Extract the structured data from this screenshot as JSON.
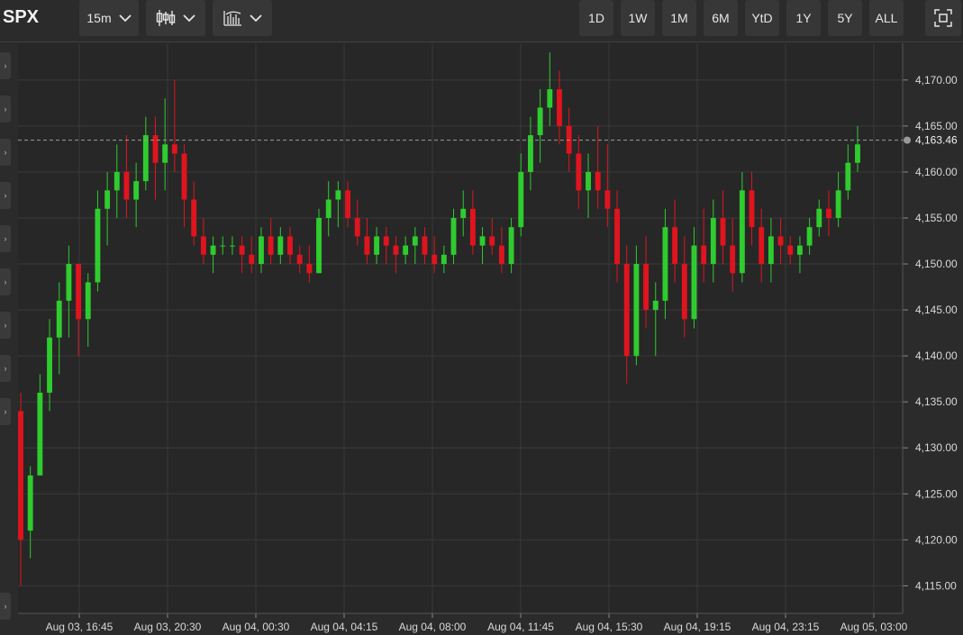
{
  "toolbar": {
    "symbol": "SPX",
    "interval": "15m",
    "chart_type_icon": "candlestick-icon",
    "indicators_icon": "indicators-icon",
    "ranges": [
      "1D",
      "1W",
      "1M",
      "6M",
      "YtD",
      "1Y",
      "5Y",
      "ALL"
    ],
    "fullscreen_icon": "fullscreen-icon"
  },
  "colors": {
    "up": "#2ecc2e",
    "down": "#e0141e",
    "background": "#2b2b2b",
    "grid": "#3a3a3a",
    "text": "#d8d8d8"
  },
  "chart_data": {
    "type": "candlestick",
    "y_axis": {
      "range": [
        4112,
        4174
      ],
      "ticks": [
        4115,
        4120,
        4125,
        4130,
        4135,
        4140,
        4145,
        4150,
        4155,
        4160,
        4165,
        4170
      ],
      "tick_labels": [
        "4,115.00",
        "4,120.00",
        "4,125.00",
        "4,130.00",
        "4,135.00",
        "4,140.00",
        "4,145.00",
        "4,150.00",
        "4,155.00",
        "4,160.00",
        "4,165.00",
        "4,170.00"
      ]
    },
    "x_axis": {
      "tick_labels": [
        "Aug 03, 16:45",
        "Aug 03, 20:30",
        "Aug 04, 00:30",
        "Aug 04, 04:15",
        "Aug 04, 08:00",
        "Aug 04, 11:45",
        "Aug 04, 15:30",
        "Aug 04, 19:15",
        "Aug 04, 23:15",
        "Aug 05, 03:00"
      ]
    },
    "last_price": 4163.46,
    "last_price_label": "4,163.46",
    "grid": true,
    "candles": [
      [
        4134,
        4136,
        4115,
        4120
      ],
      [
        4121,
        4128,
        4118,
        4127
      ],
      [
        4127,
        4138,
        4127,
        4136
      ],
      [
        4136,
        4144,
        4134,
        4142
      ],
      [
        4142,
        4148,
        4138,
        4146
      ],
      [
        4146,
        4152,
        4142,
        4150
      ],
      [
        4150,
        4150,
        4140,
        4144
      ],
      [
        4144,
        4149,
        4141,
        4148
      ],
      [
        4148,
        4158,
        4147,
        4156
      ],
      [
        4156,
        4160,
        4152,
        4158
      ],
      [
        4158,
        4163,
        4155,
        4160
      ],
      [
        4160,
        4164,
        4155,
        4157
      ],
      [
        4157,
        4161,
        4154,
        4159
      ],
      [
        4159,
        4166,
        4158,
        4164
      ],
      [
        4164,
        4166,
        4157,
        4161
      ],
      [
        4161,
        4168,
        4158,
        4163
      ],
      [
        4163,
        4170,
        4160,
        4162
      ],
      [
        4162,
        4163,
        4154,
        4157
      ],
      [
        4157,
        4159,
        4152,
        4153
      ],
      [
        4153,
        4155,
        4150,
        4151
      ],
      [
        4151,
        4153,
        4149,
        4152
      ],
      [
        4152,
        4153,
        4151,
        4152
      ],
      [
        4152,
        4153,
        4151,
        4152
      ],
      [
        4152,
        4153,
        4149,
        4151
      ],
      [
        4151,
        4153,
        4149,
        4150
      ],
      [
        4150,
        4154,
        4149,
        4153
      ],
      [
        4153,
        4155,
        4150,
        4151
      ],
      [
        4151,
        4154,
        4150,
        4153
      ],
      [
        4153,
        4154,
        4150,
        4151
      ],
      [
        4151,
        4152,
        4149,
        4150
      ],
      [
        4150,
        4152,
        4148,
        4149
      ],
      [
        4149,
        4156,
        4149,
        4155
      ],
      [
        4155,
        4159,
        4153,
        4157
      ],
      [
        4157,
        4159,
        4154,
        4158
      ],
      [
        4158,
        4159,
        4154,
        4155
      ],
      [
        4155,
        4157,
        4152,
        4153
      ],
      [
        4153,
        4155,
        4150,
        4151
      ],
      [
        4151,
        4154,
        4150,
        4153
      ],
      [
        4153,
        4154,
        4150,
        4152
      ],
      [
        4152,
        4153,
        4149,
        4151
      ],
      [
        4151,
        4153,
        4150,
        4152
      ],
      [
        4152,
        4154,
        4150,
        4153
      ],
      [
        4153,
        4154,
        4150,
        4151
      ],
      [
        4151,
        4153,
        4149,
        4150
      ],
      [
        4150,
        4152,
        4149,
        4151
      ],
      [
        4151,
        4156,
        4150,
        4155
      ],
      [
        4155,
        4158,
        4153,
        4156
      ],
      [
        4156,
        4158,
        4151,
        4152
      ],
      [
        4152,
        4154,
        4150,
        4153
      ],
      [
        4153,
        4155,
        4151,
        4152
      ],
      [
        4152,
        4154,
        4149,
        4150
      ],
      [
        4150,
        4155,
        4149,
        4154
      ],
      [
        4154,
        4162,
        4153,
        4160
      ],
      [
        4160,
        4166,
        4158,
        4164
      ],
      [
        4164,
        4169,
        4161,
        4167
      ],
      [
        4167,
        4173,
        4165,
        4169
      ],
      [
        4169,
        4171,
        4163,
        4165
      ],
      [
        4165,
        4167,
        4160,
        4162
      ],
      [
        4162,
        4164,
        4156,
        4158
      ],
      [
        4158,
        4162,
        4155,
        4160
      ],
      [
        4160,
        4165,
        4156,
        4158
      ],
      [
        4158,
        4163,
        4154,
        4156
      ],
      [
        4156,
        4158,
        4148,
        4150
      ],
      [
        4150,
        4152,
        4137,
        4140
      ],
      [
        4140,
        4152,
        4139,
        4150
      ],
      [
        4150,
        4153,
        4143,
        4145
      ],
      [
        4145,
        4148,
        4140,
        4146
      ],
      [
        4146,
        4156,
        4144,
        4154
      ],
      [
        4154,
        4157,
        4148,
        4150
      ],
      [
        4150,
        4153,
        4142,
        4144
      ],
      [
        4144,
        4154,
        4143,
        4152
      ],
      [
        4152,
        4156,
        4148,
        4150
      ],
      [
        4150,
        4157,
        4148,
        4155
      ],
      [
        4155,
        4158,
        4150,
        4152
      ],
      [
        4152,
        4155,
        4147,
        4149
      ],
      [
        4149,
        4160,
        4148,
        4158
      ],
      [
        4158,
        4160,
        4152,
        4154
      ],
      [
        4154,
        4156,
        4148,
        4150
      ],
      [
        4150,
        4155,
        4148,
        4153
      ],
      [
        4153,
        4155,
        4150,
        4152
      ],
      [
        4152,
        4153,
        4150,
        4151
      ],
      [
        4151,
        4153,
        4149,
        4152
      ],
      [
        4152,
        4155,
        4151,
        4154
      ],
      [
        4154,
        4157,
        4153,
        4156
      ],
      [
        4156,
        4158,
        4153,
        4155
      ],
      [
        4155,
        4160,
        4154,
        4158
      ],
      [
        4158,
        4163,
        4157,
        4161
      ],
      [
        4161,
        4165,
        4160,
        4163
      ]
    ]
  }
}
